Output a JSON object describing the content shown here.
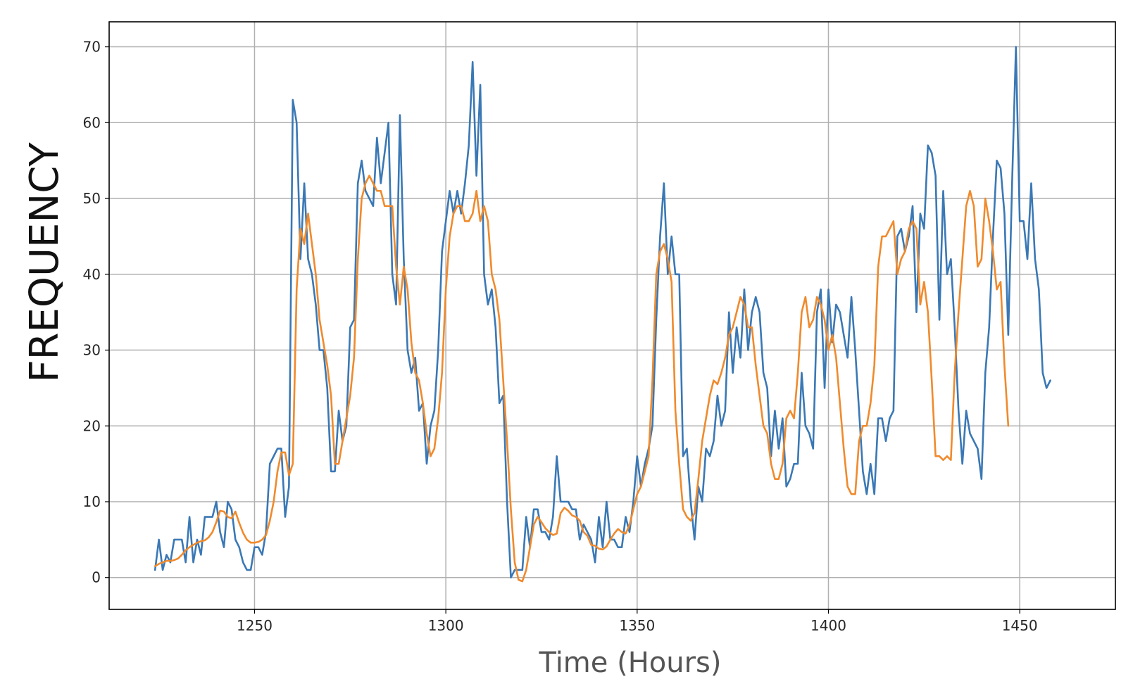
{
  "chart_data": {
    "type": "line",
    "title": "",
    "xlabel": "Time (Hours)",
    "ylabel": "FREQUENCY",
    "xlim": [
      1212,
      1475
    ],
    "ylim": [
      -4.2,
      73.3
    ],
    "xticks": [
      1250,
      1300,
      1350,
      1400,
      1450
    ],
    "yticks": [
      0,
      10,
      20,
      30,
      40,
      50,
      60,
      70
    ],
    "grid": true,
    "legend": "none",
    "x_start": 1224,
    "series": [
      {
        "color": "#3a78b5",
        "values": [
          1,
          5,
          1,
          3,
          2,
          5,
          5,
          5,
          2,
          8,
          2,
          5,
          3,
          8,
          8,
          8,
          10,
          6,
          4,
          10,
          9,
          5,
          4,
          2,
          1,
          1,
          4,
          4,
          3,
          6,
          15,
          16,
          17,
          17,
          8,
          12,
          63,
          60,
          42,
          52,
          42,
          40,
          36,
          30,
          30,
          25,
          14,
          14,
          22,
          18,
          20,
          33,
          34,
          52,
          55,
          51,
          50,
          49,
          58,
          52,
          56,
          60,
          40,
          36,
          61,
          42,
          30,
          27,
          29,
          22,
          23,
          15,
          20,
          22,
          30,
          43,
          47,
          51,
          48,
          51,
          48,
          52,
          57,
          68,
          53,
          65,
          40,
          36,
          38,
          33,
          23,
          24,
          10,
          0,
          1,
          1,
          1,
          8,
          4,
          9,
          9,
          6,
          6,
          5,
          8,
          16,
          10,
          10,
          10,
          9,
          9,
          5,
          7,
          6,
          5,
          2,
          8,
          4,
          10,
          5,
          5,
          4,
          4,
          8,
          6,
          10,
          16,
          12,
          15,
          17,
          20,
          34,
          45,
          52,
          40,
          45,
          40,
          40,
          16,
          17,
          10,
          5,
          12,
          10,
          17,
          16,
          18,
          24,
          20,
          22,
          35,
          27,
          33,
          29,
          38,
          30,
          35,
          37,
          35,
          27,
          25,
          16,
          22,
          17,
          21,
          12,
          13,
          15,
          15,
          27,
          20,
          19,
          17,
          35,
          38,
          25,
          38,
          31,
          36,
          35,
          32,
          29,
          37,
          30,
          22,
          14,
          11,
          15,
          11,
          21,
          21,
          18,
          21,
          22,
          45,
          46,
          43,
          45,
          49,
          35,
          48,
          46,
          57,
          56,
          53,
          34,
          51,
          40,
          42,
          33,
          22,
          15,
          22,
          19,
          18,
          17,
          13,
          27,
          33,
          45,
          55,
          54,
          48,
          32,
          52,
          70,
          47,
          47,
          42,
          52,
          42,
          38,
          27,
          25,
          26
        ]
      },
      {
        "color": "#f08a2c",
        "values": [
          1.5,
          1.8,
          2,
          2.2,
          2.2,
          2.3,
          2.5,
          3,
          3.6,
          4,
          4.3,
          4.6,
          4.8,
          4.9,
          5.3,
          6,
          7.3,
          8.8,
          8.7,
          8,
          7.8,
          8.7,
          7.2,
          5.9,
          5,
          4.6,
          4.6,
          4.7,
          5,
          5.6,
          7.5,
          10,
          14,
          16.5,
          16.5,
          13.5,
          15,
          38,
          46,
          44,
          48,
          44,
          40,
          34,
          31,
          28,
          24,
          15,
          15,
          18,
          21,
          24,
          29,
          42,
          50,
          52,
          53,
          52,
          51,
          51,
          49,
          49,
          49,
          41,
          36,
          41,
          38,
          31,
          27,
          26,
          23,
          19,
          16,
          17,
          21,
          27,
          38,
          45,
          48,
          49,
          49,
          47,
          47,
          48,
          51,
          47,
          49,
          47,
          40,
          38,
          34,
          26,
          18,
          9,
          2,
          -0.3,
          -0.5,
          1,
          4,
          7,
          8,
          7.3,
          6.5,
          6,
          5.6,
          5.8,
          8.5,
          9.2,
          8.8,
          8.2,
          8,
          7.5,
          6,
          5.5,
          4.3,
          4.2,
          3.8,
          3.7,
          4.1,
          5,
          5.8,
          6.4,
          6,
          5.8,
          6.9,
          9,
          11,
          12,
          14,
          16,
          26,
          40,
          43,
          44,
          42,
          39,
          22,
          15,
          9,
          8,
          7.5,
          8.5,
          13,
          18,
          21,
          24,
          26,
          25.5,
          27,
          29,
          32,
          33,
          35,
          37,
          36,
          33,
          33,
          28,
          24,
          20,
          19,
          15,
          13,
          13,
          15,
          21,
          22,
          21,
          27,
          35,
          37,
          33,
          34,
          37,
          36,
          34,
          30,
          32,
          29,
          23,
          17,
          12,
          11,
          11,
          18,
          20,
          20,
          23,
          28,
          41,
          45,
          45,
          46,
          47,
          40,
          42,
          43,
          46,
          47,
          46,
          36,
          39,
          35,
          26,
          16,
          16,
          15.5,
          16,
          15.5,
          27,
          35,
          42,
          49,
          51,
          49,
          41,
          42,
          50,
          47,
          43,
          38,
          39,
          28,
          20
        ]
      }
    ]
  }
}
